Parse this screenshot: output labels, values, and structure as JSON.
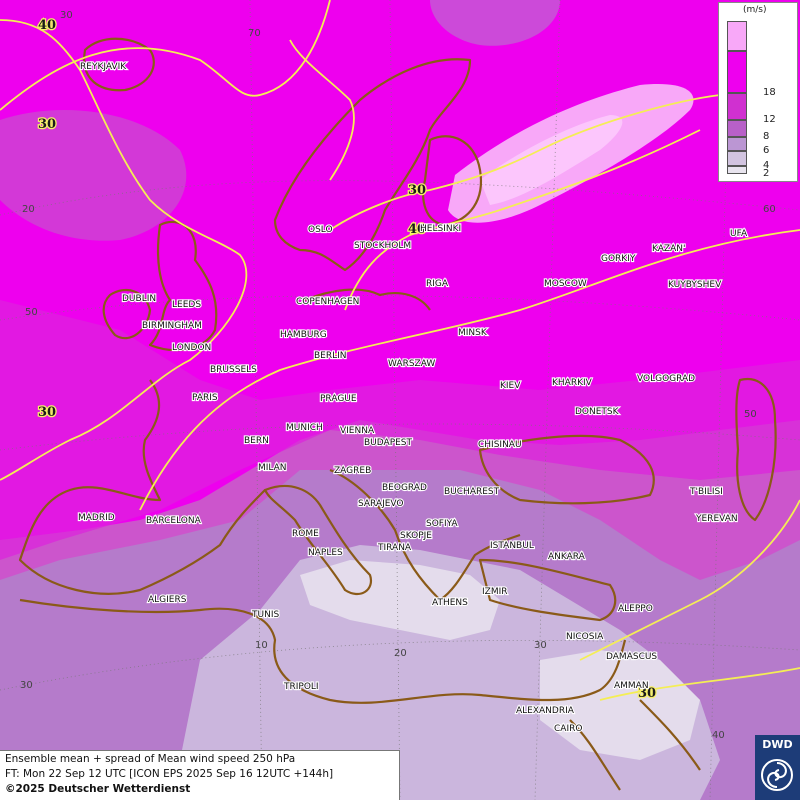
{
  "legend": {
    "unit": "(m/s)",
    "levels": [
      {
        "label": "",
        "color": "#f8a8f8"
      },
      {
        "label": "18",
        "color": "#ee00ee"
      },
      {
        "label": "12",
        "color": "#d030d0"
      },
      {
        "label": "8",
        "color": "#b860c8"
      },
      {
        "label": "6",
        "color": "#bb96d3"
      },
      {
        "label": "4",
        "color": "#d2c4e0"
      },
      {
        "label": "2",
        "color": "#e8e4ee"
      }
    ]
  },
  "isotach_labels": [
    "40",
    "30",
    "30",
    "30",
    "40",
    "30",
    "30"
  ],
  "grid_labels": [
    "30",
    "70",
    "20",
    "50",
    "60",
    "50",
    "10",
    "20",
    "30",
    "40",
    "30"
  ],
  "cities": [
    "REYKJAVIK",
    "OSLO",
    "STOCKHOLM",
    "HELSINKI",
    "DUBLIN",
    "LEEDS",
    "BIRMINGHAM",
    "LONDON",
    "COPENHAGEN",
    "RIGA",
    "HAMBURG",
    "BERLIN",
    "MINSK",
    "MOSCOW",
    "GORKIY",
    "KAZAN'",
    "UFA",
    "KUYBYSHEV",
    "BRUSSELS",
    "PARIS",
    "WARSZAW",
    "KIEV",
    "KHARKIV",
    "VOLGOGRAD",
    "PRAGUE",
    "DONETSK",
    "MUNICH",
    "VIENNA",
    "BUDAPEST",
    "BERN",
    "CHISINAU",
    "MILAN",
    "ZAGREB",
    "BEOGRAD",
    "BUCHAREST",
    "T'BILISI",
    "SARAJEVO",
    "MADRID",
    "BARCELONA",
    "ROME",
    "SOFIYA",
    "YEREVAN",
    "NAPLES",
    "SKOPJE",
    "TIRANA",
    "ISTANBUL",
    "ANKARA",
    "IZMIR",
    "ALGIERS",
    "ATHENS",
    "ALEPPO",
    "TUNIS",
    "NICOSIA",
    "DAMASCUS",
    "TRIPOLI",
    "AMMAN",
    "ALEXANDRIA",
    "CAIRO"
  ],
  "info": {
    "line1": "Ensemble mean + spread of Mean wind speed 250 hPa",
    "line2": "FT: Mon 22 Sep 12 UTC [ICON EPS 2025 Sep 16 12UTC +144h]",
    "line3": "©2025 Deutscher Wetterdienst"
  },
  "logo": {
    "text": "DWD"
  },
  "colors": {
    "land_border": "#8a5a18",
    "isotach": "#f4ee55"
  }
}
